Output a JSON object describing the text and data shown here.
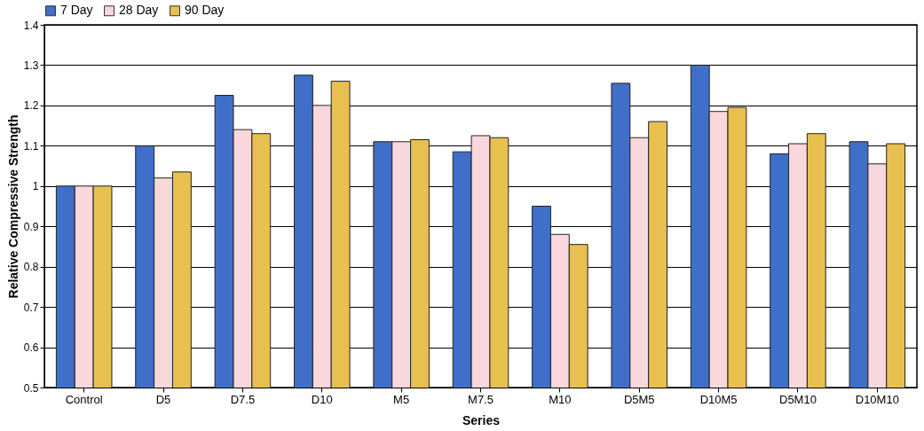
{
  "chart_data": {
    "type": "bar",
    "xlabel": "Series",
    "ylabel": "Relative Compressive Strength",
    "categories": [
      "Control",
      "D5",
      "D7.5",
      "D10",
      "M5",
      "M7.5",
      "M10",
      "D5M5",
      "D10M5",
      "D5M10",
      "D10M10"
    ],
    "series": [
      {
        "name": "7 Day",
        "color": "#3f6fc8",
        "values": [
          1.0,
          1.1,
          1.225,
          1.275,
          1.11,
          1.085,
          0.95,
          1.255,
          1.3,
          1.08,
          1.11
        ]
      },
      {
        "name": "28 Day",
        "color": "#f8d8dc",
        "values": [
          1.0,
          1.02,
          1.14,
          1.2,
          1.11,
          1.125,
          0.88,
          1.12,
          1.185,
          1.105,
          1.055
        ]
      },
      {
        "name": "90 Day",
        "color": "#e8c050",
        "values": [
          1.0,
          1.035,
          1.13,
          1.26,
          1.115,
          1.12,
          0.855,
          1.16,
          1.195,
          1.13,
          1.105
        ]
      }
    ],
    "ylim": [
      0.5,
      1.4
    ],
    "yticks": [
      0.5,
      0.6,
      0.7,
      0.8,
      0.9,
      {
        "value": 1,
        "label": "1"
      },
      1.1,
      1.2,
      1.3,
      1.4
    ],
    "grid": "y",
    "legend": "top"
  }
}
